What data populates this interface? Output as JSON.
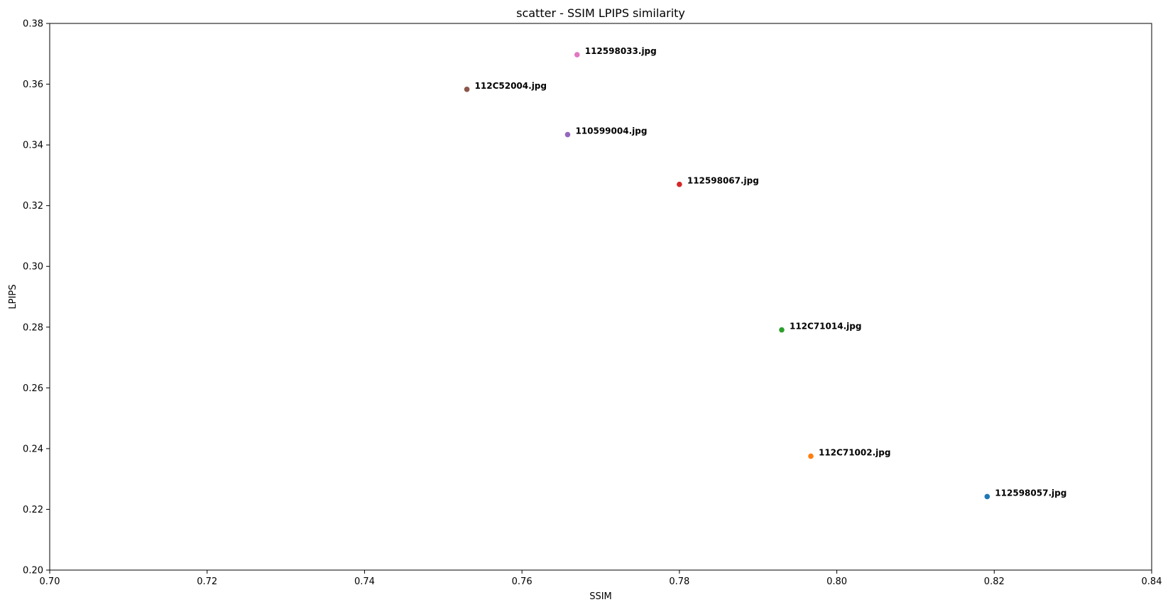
{
  "chart_data": {
    "type": "scatter",
    "title": "scatter - SSIM LPIPS similarity",
    "xlabel": "SSIM",
    "ylabel": "LPIPS",
    "xlim": [
      0.7,
      0.84
    ],
    "ylim": [
      0.2,
      0.38
    ],
    "xticks": [
      "0.70",
      "0.72",
      "0.74",
      "0.76",
      "0.78",
      "0.80",
      "0.82",
      "0.84"
    ],
    "yticks": [
      "0.20",
      "0.22",
      "0.24",
      "0.26",
      "0.28",
      "0.30",
      "0.32",
      "0.34",
      "0.36",
      "0.38"
    ],
    "grid": false,
    "points": [
      {
        "label": "112598057.jpg",
        "x": 0.8191,
        "y": 0.2242,
        "color": "#1f77b4"
      },
      {
        "label": "112C71002.jpg",
        "x": 0.7967,
        "y": 0.2375,
        "color": "#ff7f0e"
      },
      {
        "label": "112C71014.jpg",
        "x": 0.793,
        "y": 0.2791,
        "color": "#2ca02c"
      },
      {
        "label": "112598067.jpg",
        "x": 0.78,
        "y": 0.327,
        "color": "#d62728"
      },
      {
        "label": "110599004.jpg",
        "x": 0.7658,
        "y": 0.3434,
        "color": "#9467bd"
      },
      {
        "label": "112C52004.jpg",
        "x": 0.753,
        "y": 0.3583,
        "color": "#8c564b"
      },
      {
        "label": "112598033.jpg",
        "x": 0.767,
        "y": 0.3697,
        "color": "#e377c2"
      }
    ]
  }
}
